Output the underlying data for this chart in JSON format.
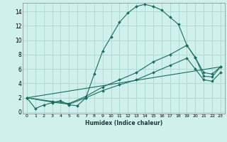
{
  "xlabel": "Humidex (Indice chaleur)",
  "bg_color": "#cff0eb",
  "grid_color": "#a8d8d0",
  "line_color": "#1a6e60",
  "xlim": [
    -0.5,
    23.5
  ],
  "ylim": [
    -0.2,
    15.2
  ],
  "xticks": [
    0,
    1,
    2,
    3,
    4,
    5,
    6,
    7,
    8,
    9,
    10,
    11,
    12,
    13,
    14,
    15,
    16,
    17,
    18,
    19,
    20,
    21,
    22,
    23
  ],
  "yticks": [
    0,
    2,
    4,
    6,
    8,
    10,
    12,
    14
  ],
  "series": [
    {
      "x": [
        0,
        1,
        2,
        3,
        4,
        5,
        6,
        7,
        8,
        9,
        10,
        11,
        12,
        13,
        14,
        15,
        16,
        17,
        18,
        19,
        20,
        21,
        22,
        23
      ],
      "y": [
        2.0,
        0.5,
        1.0,
        1.3,
        1.6,
        1.0,
        0.9,
        2.0,
        5.3,
        8.5,
        10.5,
        12.5,
        13.8,
        14.7,
        15.0,
        14.7,
        14.2,
        13.2,
        12.2,
        9.3,
        7.6,
        5.0,
        4.9,
        6.3
      ],
      "marker": true
    },
    {
      "x": [
        0,
        3,
        5,
        7,
        9,
        11,
        13,
        15,
        17,
        19,
        20,
        21,
        22,
        23
      ],
      "y": [
        2.0,
        1.5,
        1.2,
        2.2,
        3.5,
        4.5,
        5.5,
        7.0,
        8.0,
        9.3,
        7.6,
        5.5,
        5.3,
        6.3
      ],
      "marker": true
    },
    {
      "x": [
        0,
        3,
        5,
        7,
        9,
        11,
        13,
        15,
        17,
        19,
        20,
        21,
        22,
        23
      ],
      "y": [
        2.0,
        1.4,
        1.1,
        2.0,
        3.0,
        3.8,
        4.5,
        5.5,
        6.5,
        7.5,
        6.0,
        4.5,
        4.3,
        5.5
      ],
      "marker": true
    },
    {
      "x": [
        0,
        23
      ],
      "y": [
        2.0,
        6.3
      ],
      "marker": false
    }
  ]
}
